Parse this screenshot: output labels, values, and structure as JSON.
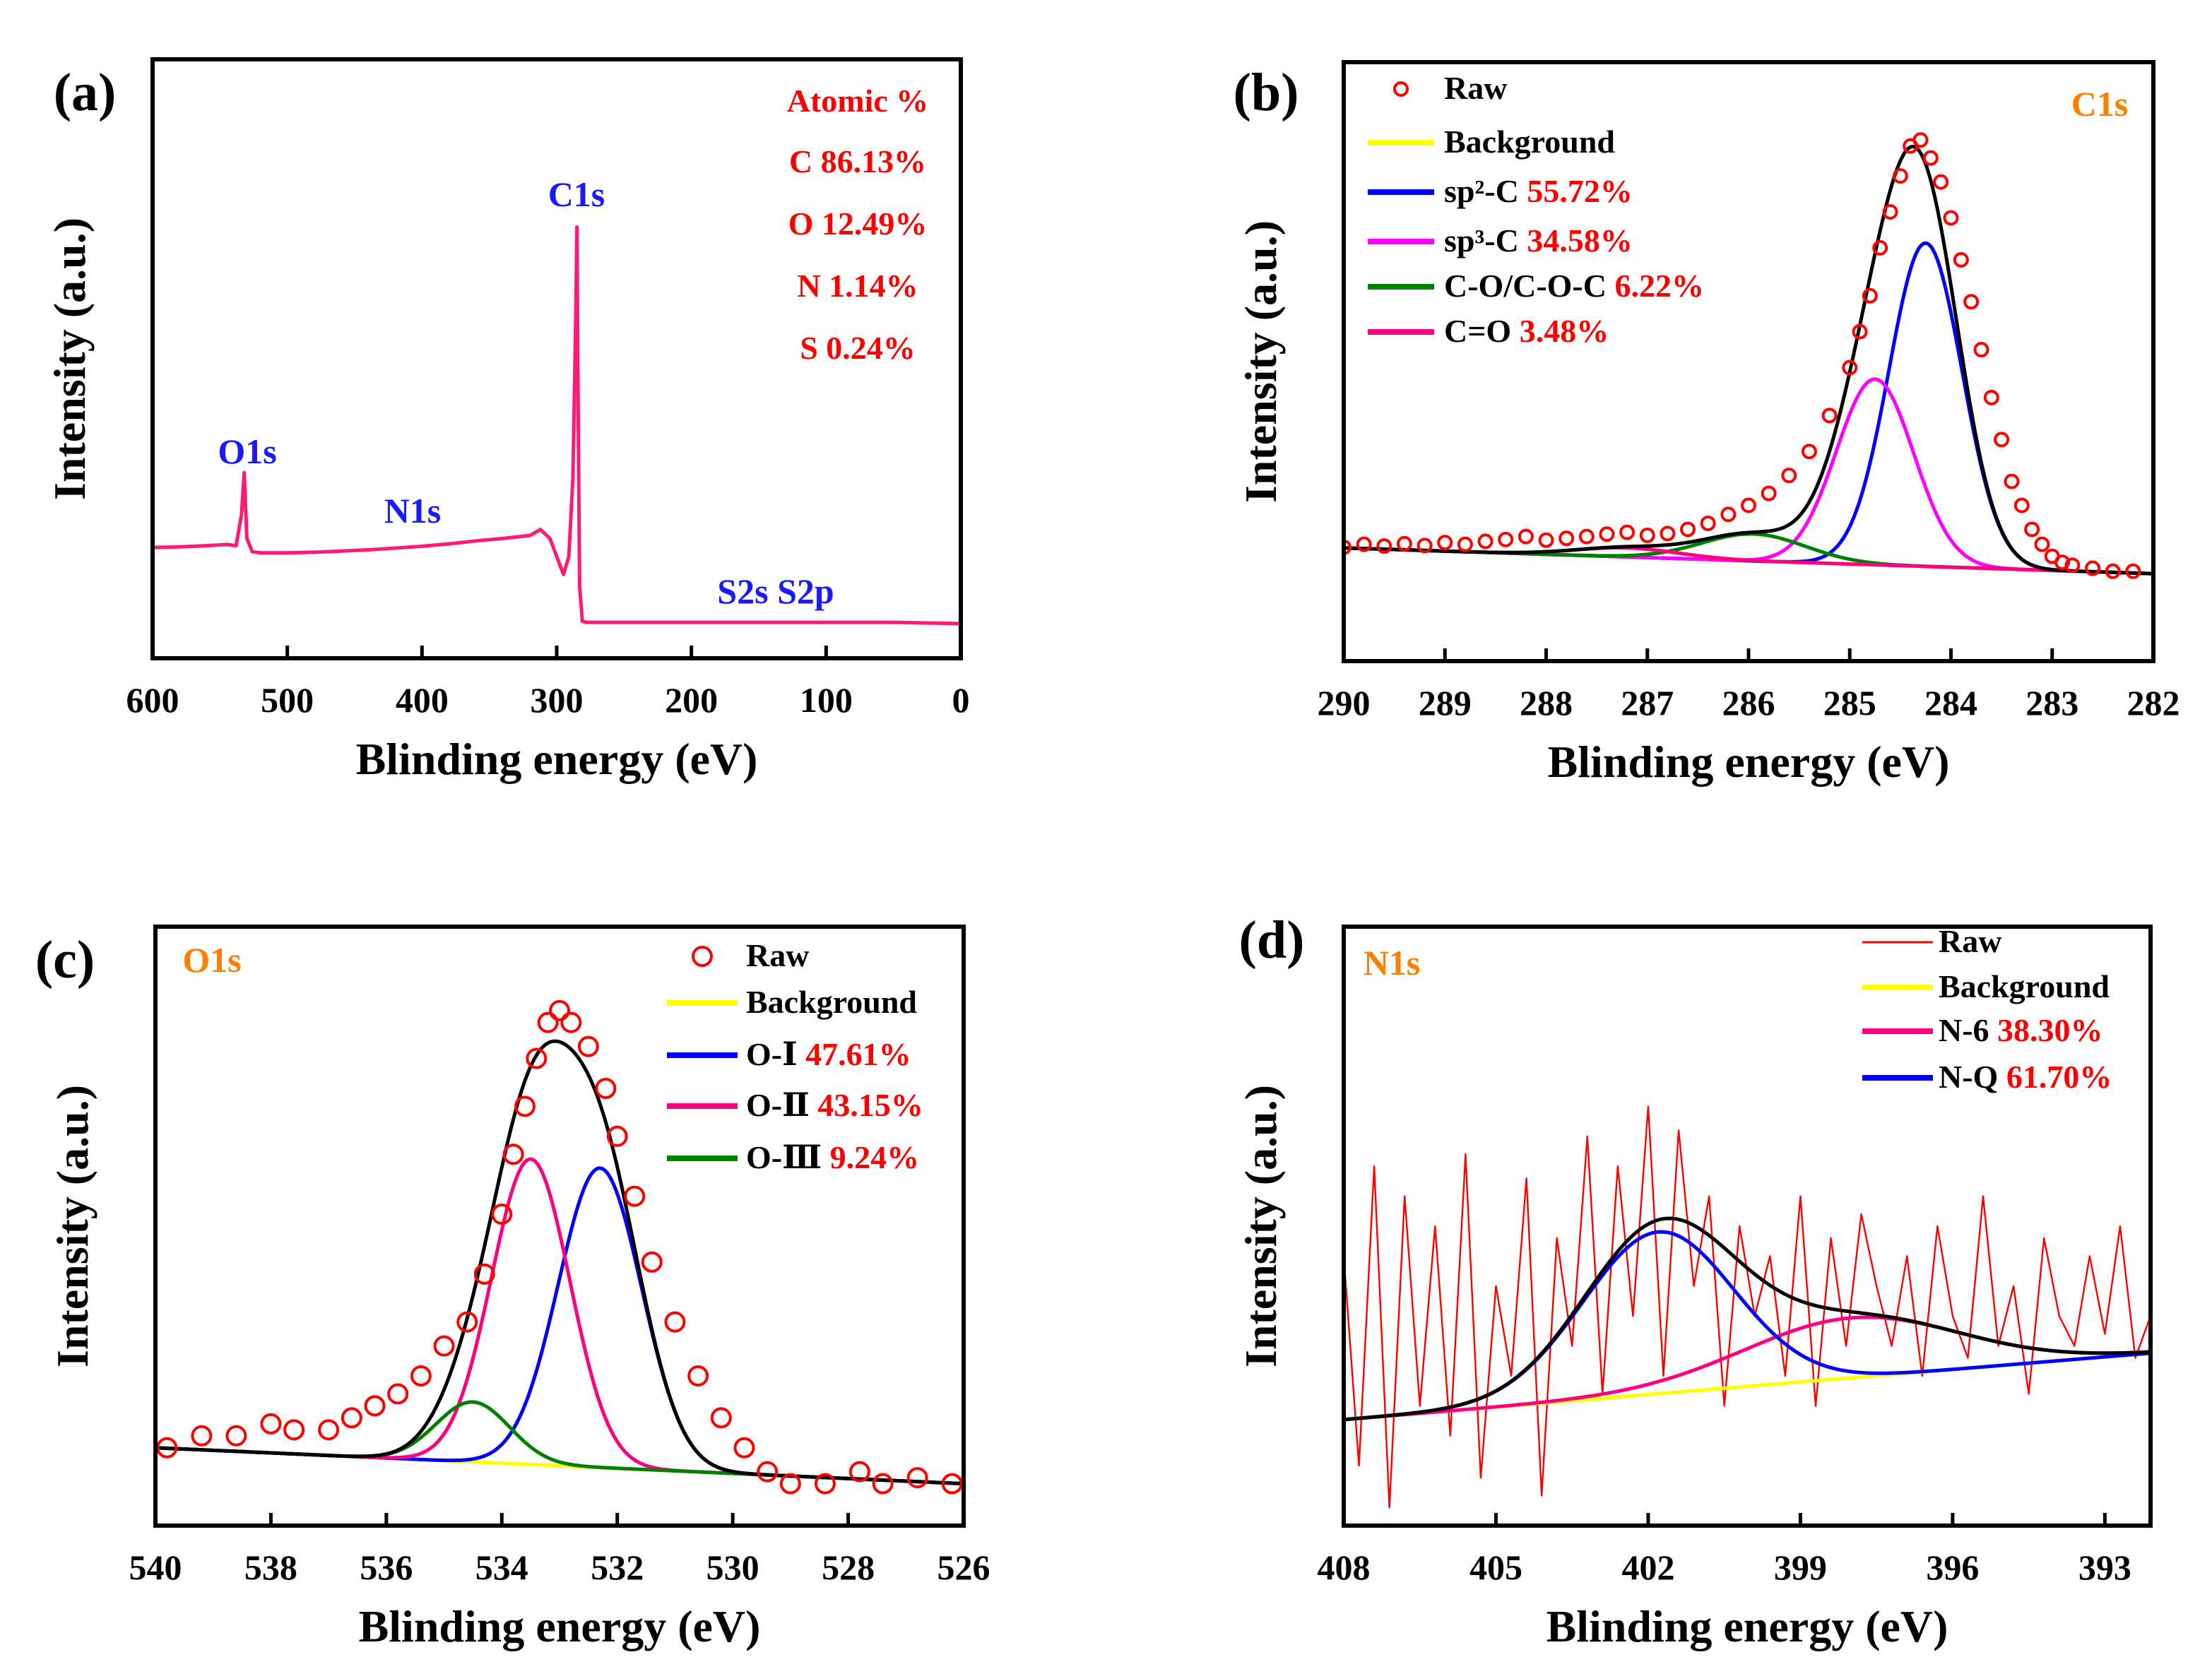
{
  "chart_data": [
    {
      "panel_label": "(a)",
      "type": "line",
      "xlabel": "Blinding energy (eV)",
      "ylabel": "Intensity (a.u.)",
      "xlim": [
        600,
        0
      ],
      "ylim": [
        0,
        100
      ],
      "xticks": [
        600,
        500,
        400,
        300,
        200,
        100,
        0
      ],
      "series": [
        {
          "color": "#ff1a75",
          "x": [
            600,
            580,
            560,
            545,
            538,
            534,
            532,
            530,
            526,
            520,
            500,
            480,
            460,
            440,
            420,
            400,
            380,
            360,
            340,
            320,
            312,
            305,
            300,
            295,
            291,
            288,
            286,
            285,
            284.3,
            283,
            281,
            278,
            260,
            200,
            150,
            100,
            50,
            0
          ],
          "y": [
            18.5,
            18.6,
            18.8,
            19,
            18.8,
            24,
            31,
            20,
            17.8,
            17.6,
            17.6,
            17.7,
            17.9,
            18.1,
            18.4,
            18.7,
            19.1,
            19.6,
            20,
            20.5,
            21.5,
            20,
            17,
            14,
            17,
            30,
            55,
            72,
            48,
            12,
            6.2,
            6,
            6,
            6,
            6,
            6,
            6,
            5.8
          ]
        }
      ],
      "peak_labels": [
        {
          "text": "O1s",
          "x": 530,
          "color": "#1a1aff"
        },
        {
          "text": "N1s",
          "x": 400,
          "color": "#1a1aff"
        },
        {
          "text": "C1s",
          "x": 285,
          "color": "#1a1aff"
        },
        {
          "text": "S2s S2p",
          "x": 170,
          "color": "#1a1aff"
        }
      ],
      "annotations": [
        "Atomic %",
        "C 86.13%",
        "O 12.49%",
        "N 1.14%",
        "S 0.24%"
      ],
      "annotation_color": "#ff0000"
    },
    {
      "panel_label": "(b)",
      "type": "line",
      "title": "C1s",
      "title_color": "#ff8000",
      "xlabel": "Blinding energy (eV)",
      "ylabel": "Intensity (a.u.)",
      "xlim": [
        290,
        282
      ],
      "ylim": [
        0,
        100
      ],
      "xticks": [
        290,
        289,
        288,
        287,
        286,
        285,
        284,
        283,
        282
      ],
      "background": {
        "x": [
          290,
          282
        ],
        "y": [
          18.9,
          14.6
        ],
        "color": "#ffff00"
      },
      "components": [
        {
          "name": "sp²-C",
          "pct": "55.72%",
          "color": "#0000ff",
          "center": 284.25,
          "height": 54,
          "fwhm": 0.85
        },
        {
          "name": "sp³-C",
          "pct": "34.58%",
          "color": "#ff00ff",
          "center": 284.75,
          "height": 31,
          "fwhm": 0.9
        },
        {
          "name": "C-O/C-O-C",
          "pct": "6.22%",
          "color": "#008000",
          "center": 285.95,
          "height": 4.5,
          "fwhm": 1.2
        },
        {
          "name": "C=O",
          "pct": "3.48%",
          "color": "#ff0080",
          "center": 287.2,
          "height": 1.5,
          "fwhm": 1.2
        }
      ],
      "envelope_color": "#000000",
      "raw": {
        "name": "Raw",
        "marker": "circle",
        "color": "#ff0000",
        "x": [
          290,
          289.8,
          289.6,
          289.4,
          289.2,
          289,
          288.8,
          288.6,
          288.4,
          288.2,
          288,
          287.8,
          287.6,
          287.4,
          287.2,
          287,
          286.8,
          286.6,
          286.4,
          286.2,
          286,
          285.8,
          285.6,
          285.4,
          285.2,
          285,
          284.9,
          284.8,
          284.7,
          284.6,
          284.5,
          284.4,
          284.3,
          284.2,
          284.1,
          284,
          283.9,
          283.8,
          283.7,
          283.6,
          283.5,
          283.4,
          283.3,
          283.2,
          283.1,
          283,
          282.9,
          282.8,
          282.6,
          282.4,
          282.2
        ],
        "y": [
          19,
          19.5,
          19.2,
          19.6,
          19.3,
          19.8,
          19.5,
          20,
          20.3,
          20.8,
          20.2,
          20.5,
          20.8,
          21.2,
          21.5,
          21,
          21.3,
          22,
          23,
          24.5,
          26,
          28,
          31,
          35,
          41,
          49,
          55,
          61,
          69,
          75,
          81,
          86,
          87,
          84,
          80,
          74,
          67,
          60,
          52,
          44,
          37,
          30,
          26,
          22,
          19.5,
          17.5,
          16.5,
          16,
          15.5,
          15,
          15
        ]
      }
    },
    {
      "panel_label": "(c)",
      "type": "line",
      "title": "O1s",
      "title_color": "#ff8000",
      "xlabel": "Blinding energy (eV)",
      "ylabel": "Intensity (a.u.)",
      "xlim": [
        540,
        526
      ],
      "ylim": [
        0,
        100
      ],
      "xticks": [
        540,
        538,
        536,
        534,
        532,
        530,
        528,
        526
      ],
      "background": {
        "x": [
          540,
          526
        ],
        "y": [
          13,
          7
        ],
        "color": "#ffff00"
      },
      "components": [
        {
          "name": "O-Ⅰ",
          "pct": "47.61%",
          "color": "#0000ff",
          "center": 532.3,
          "height": 50,
          "fwhm": 1.7
        },
        {
          "name": "O-Ⅱ",
          "pct": "43.15%",
          "color": "#ff0080",
          "center": 533.5,
          "height": 51,
          "fwhm": 1.6
        },
        {
          "name": "O-Ⅲ",
          "pct": "9.24%",
          "color": "#008000",
          "center": 534.5,
          "height": 10,
          "fwhm": 1.5
        }
      ],
      "envelope_color": "#000000",
      "raw": {
        "name": "Raw",
        "marker": "circle",
        "color": "#ff0000",
        "x": [
          539.8,
          539.2,
          538.6,
          538,
          537.6,
          537,
          536.6,
          536.2,
          535.8,
          535.4,
          535,
          534.6,
          534.3,
          534,
          533.8,
          533.6,
          533.4,
          533.2,
          533,
          532.8,
          532.5,
          532.2,
          532,
          531.7,
          531.4,
          531,
          530.6,
          530.2,
          529.8,
          529.4,
          529,
          528.4,
          527.8,
          527.4,
          526.8,
          526.2
        ],
        "y": [
          13,
          15,
          15,
          17,
          16,
          16,
          18,
          20,
          22,
          25,
          30,
          34,
          42,
          52,
          62,
          70,
          78,
          84,
          86,
          84,
          80,
          73,
          65,
          55,
          44,
          34,
          25,
          18,
          13,
          9,
          7,
          7,
          9,
          7,
          8,
          7
        ]
      }
    },
    {
      "panel_label": "(d)",
      "type": "line",
      "title": "N1s",
      "title_color": "#ff8000",
      "xlabel": "Blinding energy (eV)",
      "ylabel": "Intensity (a.u.)",
      "xlim": [
        408,
        392.1
      ],
      "ylim": [
        0,
        100
      ],
      "xticks": [
        408,
        405,
        402,
        399,
        396,
        393
      ],
      "background": {
        "x": [
          408,
          392.1
        ],
        "y": [
          17.7,
          28.8
        ],
        "color": "#ffff00"
      },
      "components": [
        {
          "name": "N-6",
          "pct": "38.30%",
          "color": "#ff0080",
          "center": 398,
          "height": 10,
          "fwhm": 5
        },
        {
          "name": "N-Q",
          "pct": "61.70%",
          "color": "#0000ff",
          "center": 401.8,
          "height": 27,
          "fwhm": 3.5
        }
      ],
      "envelope_color": "#000000",
      "raw": {
        "name": "Raw",
        "marker": "line",
        "color": "#ff0000",
        "x": [
          408,
          407.7,
          407.4,
          407.1,
          406.8,
          406.5,
          406.2,
          405.9,
          405.6,
          405.3,
          405,
          404.7,
          404.4,
          404.1,
          403.8,
          403.5,
          403.2,
          402.9,
          402.6,
          402.3,
          402,
          401.7,
          401.4,
          401.1,
          400.8,
          400.5,
          400.2,
          399.9,
          399.6,
          399.3,
          399,
          398.7,
          398.4,
          398.1,
          397.8,
          397.5,
          397.2,
          396.9,
          396.6,
          396.3,
          396,
          395.7,
          395.4,
          395.1,
          394.8,
          394.5,
          394.2,
          393.9,
          393.6,
          393.3,
          393,
          392.7,
          392.4,
          392.1
        ],
        "y": [
          45,
          10,
          60,
          3,
          55,
          20,
          50,
          15,
          62,
          8,
          40,
          25,
          58,
          5,
          48,
          30,
          65,
          22,
          60,
          35,
          70,
          25,
          66,
          40,
          55,
          20,
          50,
          35,
          45,
          25,
          55,
          20,
          48,
          30,
          52,
          40,
          30,
          45,
          25,
          50,
          35,
          28,
          55,
          30,
          40,
          22,
          48,
          35,
          30,
          45,
          32,
          50,
          28,
          35
        ]
      }
    }
  ]
}
